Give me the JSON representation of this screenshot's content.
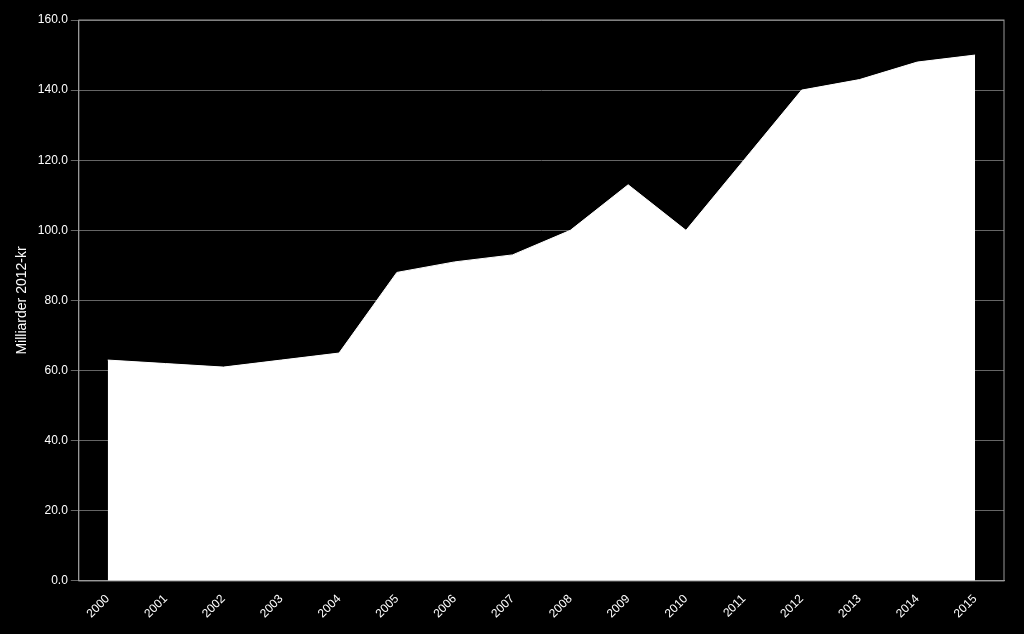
{
  "chart_data": {
    "type": "area",
    "x": [
      2000,
      2001,
      2002,
      2003,
      2004,
      2005,
      2006,
      2007,
      2008,
      2009,
      2010,
      2011,
      2012,
      2013,
      2014,
      2015
    ],
    "values": [
      63,
      62,
      61,
      63,
      65,
      88,
      91,
      93,
      100,
      113,
      100,
      120,
      140,
      143,
      148,
      150
    ],
    "color": "#ffffff",
    "ylabel": "Milliarder 2012-kr",
    "xlim": [
      1999.5,
      2015.5
    ],
    "xticks": [
      2000,
      2001,
      2002,
      2003,
      2004,
      2005,
      2006,
      2007,
      2008,
      2009,
      2010,
      2011,
      2012,
      2013,
      2014,
      2015
    ],
    "ylim": [
      0,
      160
    ],
    "yticks": [
      {
        "value": 0,
        "label": "0.0"
      },
      {
        "value": 20,
        "label": "20.0"
      },
      {
        "value": 40,
        "label": "40.0"
      },
      {
        "value": 60,
        "label": "60.0"
      },
      {
        "value": 80,
        "label": "80.0"
      },
      {
        "value": 100,
        "label": "100.0"
      },
      {
        "value": 120,
        "label": "120.0"
      },
      {
        "value": 140,
        "label": "140.0"
      },
      {
        "value": 160,
        "label": "160.0"
      }
    ],
    "grid": "y"
  }
}
